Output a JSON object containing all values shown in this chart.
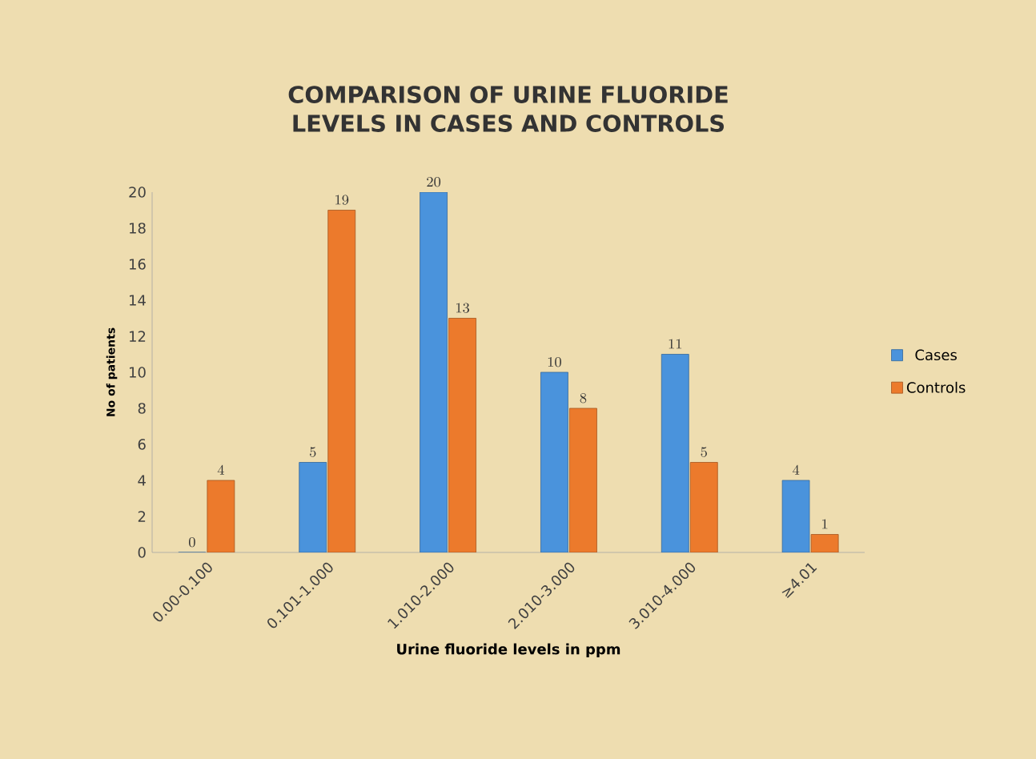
{
  "chart_data": {
    "type": "bar",
    "title": "COMPARISON OF URINE FLUORIDE LEVELS IN CASES AND CONTROLS",
    "xlabel": "Urine fluoride levels in ppm",
    "ylabel": "No of patients",
    "categories": [
      "0.00-0.100",
      "0.101-1.000",
      "1.010-2.000",
      "2.010-3.000",
      "3.010-4.000",
      "≥4.01"
    ],
    "series": [
      {
        "name": "Cases",
        "color": "#4a93dc",
        "values": [
          0,
          5,
          20,
          10,
          11,
          4
        ]
      },
      {
        "name": "Controls",
        "color": "#ec7a2c",
        "values": [
          4,
          19,
          13,
          8,
          5,
          1
        ]
      }
    ],
    "ylim": [
      0,
      20
    ],
    "yticks": [
      0,
      2,
      4,
      6,
      8,
      10,
      12,
      14,
      16,
      18,
      20
    ],
    "data_labels": true,
    "legend": "right"
  }
}
